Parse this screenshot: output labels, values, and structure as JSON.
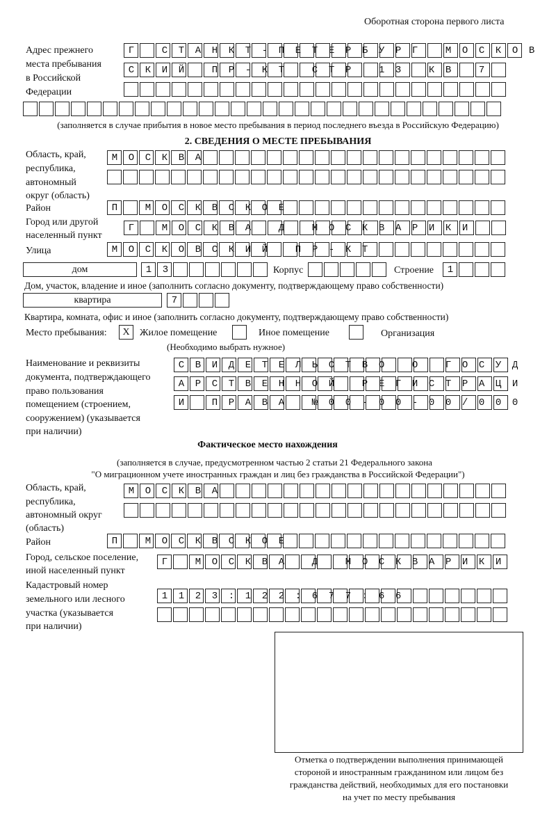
{
  "header": "Оборотная сторона первого листа",
  "prev_address": {
    "label": [
      "Адрес прежнего",
      "места пребывания",
      "в Российской",
      "Федерации"
    ],
    "rows": [
      "Г СТАНКТ-ПЕТЕРБУРГ МОСКОВ",
      "СКИЙ ПР-КТ СТР 13 КВ 7  ",
      "                        ",
      "                              "
    ],
    "note": "(заполняется в случае прибытия в новое место пребывания в период последнего въезда в Российскую Федерацию)"
  },
  "section2": {
    "title": "2. СВЕДЕНИЯ О МЕСТЕ ПРЕБЫВАНИЯ",
    "region_label": [
      "Область, край,",
      "республика,",
      "автономный",
      "округ (область)"
    ],
    "region_rows": [
      "МОСКВА                   ",
      "                         "
    ],
    "district_label": "Район",
    "district": "П МОСКВСКОЕ              ",
    "city_label": [
      "Город или другой",
      "населенный пункт"
    ],
    "city": "Г МОСКВА Д МОСКВАРИКИ   ",
    "street_label": "Улица",
    "street": "МОСКОВСКИЙ ПР-КТ         ",
    "house_type": "дом",
    "house": "13      ",
    "korpus_label": "Корпус",
    "korpus": "     ",
    "stroenie_label": "Строение",
    "stroenie": "1   ",
    "house_note": "Дом, участок, владение и иное (заполнить согласно документу, подтверждающему право собственности)",
    "flat_type": "квартира",
    "flat": "7   ",
    "flat_note": "Квартира, комната, офис и иное (заполнить согласно документу, подтверждающему право собственности)",
    "place_label": "Место пребывания:",
    "options": [
      {
        "label": "Жилое помещение",
        "mark": "X"
      },
      {
        "label": "Иное помещение",
        "mark": ""
      },
      {
        "label": "Организация",
        "mark": ""
      }
    ],
    "choose_note": "(Необходимо выбрать нужное)",
    "doc_label": [
      "Наименование и реквизиты",
      "документа, подтверждающего",
      "право пользования",
      "помещением (строением,",
      "сооружением) (указывается",
      "при наличии)"
    ],
    "doc_rows": [
      "СВИДЕТЕЛЬСТВО О ГОСУД",
      "АРСТВЕННОЙ РЕГИСТРАЦИ",
      "И ПРАВА №00-00-00/000"
    ]
  },
  "actual": {
    "title": "Фактическое место нахождения",
    "note": [
      "(заполняется в случае, предусмотренном частью 2 статьи 21 Федерального закона",
      "\"О миграционном учете иностранных граждан и лиц без гражданства в Российской Федерации\")"
    ],
    "region_label": [
      "Область, край,",
      "республика,",
      "автономный округ",
      "(область)"
    ],
    "region_rows": [
      "МОСКВА                  ",
      "                        "
    ],
    "district_label": "Район",
    "district": "П МОСКВСКОЕ              ",
    "city_label": [
      "Город, сельское поселение,",
      "иной населенный пункт"
    ],
    "city": "Г МОСКВА Д МОСКВАРИКИ ",
    "cadastral_label": [
      "Кадастровый номер",
      "земельного или лесного",
      "участка (указывается",
      "при наличии)"
    ],
    "cadastral_rows": [
      "1123:122:677:66       ",
      "                      "
    ]
  },
  "stamp_caption": [
    "Отметка о подтверждении выполнения принимающей",
    "стороной и иностранным гражданином или лицом без",
    "гражданства действий, необходимых для его постановки",
    "на учет по месту пребывания"
  ]
}
